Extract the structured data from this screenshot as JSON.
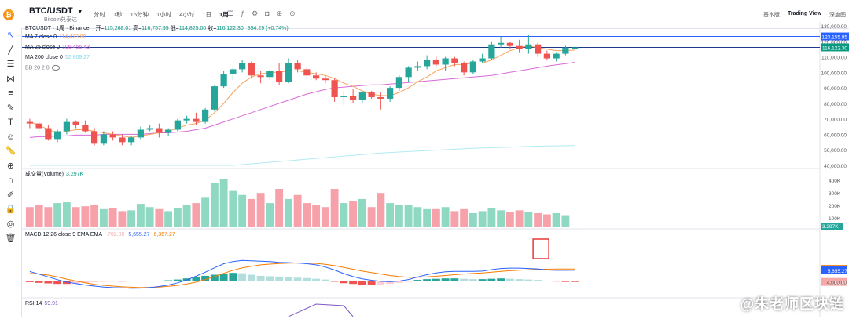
{
  "header": {
    "star_icon": "star-icon",
    "symbol": "BTC/USDT",
    "symbol_sub": "Bitcoin兑泰达",
    "intervals": [
      "分时",
      "1秒",
      "15分钟",
      "1小时",
      "4小时",
      "1日",
      "1周"
    ],
    "active_interval": "1周",
    "view_modes": [
      "基本版",
      "Trading View",
      "深度图"
    ],
    "active_view": "Trading View"
  },
  "ohlc": {
    "title": "BTCUSDT · 1周 · Binance",
    "open_label": "开=",
    "open": "115,268.01",
    "high_label": "高=",
    "high": "116,757.99",
    "low_label": "低=",
    "low": "114,825.00",
    "close_label": "收=",
    "close": "116,122.30",
    "change": "854.29 (+0.74%)"
  },
  "indicators": [
    {
      "label": "MA 7 close 0",
      "value": "114,423.80",
      "color": "#f7a35c"
    },
    {
      "label": "MA 25 close 0",
      "value": "106,456.43",
      "color": "#d15ad1"
    },
    {
      "label": "MA 200 close 0",
      "value": "52,809.27",
      "color": "#7fd8e8"
    },
    {
      "label": "BB 20 2 0",
      "value": "",
      "color": "#777777"
    }
  ],
  "volume": {
    "label": "成交量(Volume)",
    "value": "3.297K",
    "axis": [
      "400K",
      "300K",
      "200K",
      "100K"
    ],
    "tag": "3.297K"
  },
  "macd": {
    "label": "MACD 12 26 close 9 EMA EMA",
    "values": [
      "-702.09",
      "5,655.27",
      "6,357.27"
    ],
    "colors": [
      "#f5a8a8",
      "#2962ff",
      "#f57c00"
    ],
    "tags": [
      "6,357.27",
      "5,655.27",
      "-702.09"
    ],
    "axis_label": "4,000.00"
  },
  "rsi": {
    "label": "RSI 14",
    "value": "59.91"
  },
  "price_axis": [
    "130,000.00",
    "120,000.00",
    "110,000.00",
    "100,000.00",
    "90,000.00",
    "80,000.00",
    "70,000.00",
    "60,000.00",
    "50,000.00",
    "40,000.00"
  ],
  "price_tags": [
    {
      "value": "123,155.85",
      "color": "#2962ff"
    },
    {
      "value": "116,122.30",
      "color": "#089981"
    }
  ],
  "watermark": "@朱老师区块链",
  "chart_data": {
    "type": "candlestick",
    "ylim": [
      40000,
      130000
    ],
    "candles": [
      [
        68000,
        70000,
        64000,
        67000
      ],
      [
        67000,
        69000,
        62000,
        64000
      ],
      [
        64000,
        66000,
        56000,
        57000
      ],
      [
        57000,
        63000,
        55000,
        62000
      ],
      [
        62000,
        70000,
        60000,
        68000
      ],
      [
        68000,
        69000,
        64000,
        66000
      ],
      [
        66000,
        69000,
        61000,
        62000
      ],
      [
        62000,
        64000,
        53000,
        54000
      ],
      [
        54000,
        62000,
        53000,
        60000
      ],
      [
        60000,
        62000,
        56000,
        58000
      ],
      [
        58000,
        60000,
        53000,
        55000
      ],
      [
        55000,
        59000,
        53000,
        58000
      ],
      [
        58000,
        65000,
        57000,
        63000
      ],
      [
        63000,
        66000,
        62000,
        64000
      ],
      [
        64000,
        67000,
        58000,
        61000
      ],
      [
        61000,
        64000,
        59000,
        63000
      ],
      [
        63000,
        70000,
        62000,
        69000
      ],
      [
        69000,
        72000,
        67000,
        70000
      ],
      [
        70000,
        74000,
        66000,
        68000
      ],
      [
        68000,
        77000,
        67000,
        76000
      ],
      [
        76000,
        92000,
        75000,
        91000
      ],
      [
        91000,
        101000,
        90000,
        99000
      ],
      [
        99000,
        104000,
        95000,
        102000
      ],
      [
        102000,
        108000,
        100000,
        106000
      ],
      [
        106000,
        107000,
        96000,
        98000
      ],
      [
        98000,
        101000,
        93000,
        97000
      ],
      [
        97000,
        102000,
        95000,
        101000
      ],
      [
        101000,
        106000,
        92000,
        94000
      ],
      [
        94000,
        109000,
        93000,
        106000
      ],
      [
        106000,
        108000,
        100000,
        102000
      ],
      [
        102000,
        104000,
        96000,
        98000
      ],
      [
        98000,
        100000,
        95000,
        96000
      ],
      [
        96000,
        98000,
        93000,
        95000
      ],
      [
        95000,
        96000,
        81000,
        84000
      ],
      [
        84000,
        88000,
        79000,
        85000
      ],
      [
        85000,
        89000,
        80000,
        82000
      ],
      [
        82000,
        88000,
        80000,
        87000
      ],
      [
        87000,
        88000,
        83000,
        84000
      ],
      [
        84000,
        87000,
        76000,
        83000
      ],
      [
        83000,
        91000,
        81000,
        90000
      ],
      [
        90000,
        98000,
        88000,
        97000
      ],
      [
        97000,
        104000,
        94000,
        103000
      ],
      [
        103000,
        107000,
        101000,
        104000
      ],
      [
        104000,
        111000,
        102000,
        108000
      ],
      [
        108000,
        110000,
        104000,
        105000
      ],
      [
        105000,
        110000,
        101000,
        109000
      ],
      [
        109000,
        110000,
        104000,
        106000
      ],
      [
        106000,
        107000,
        98000,
        100000
      ],
      [
        100000,
        108000,
        99000,
        107000
      ],
      [
        107000,
        112000,
        106000,
        109000
      ],
      [
        109000,
        120000,
        108000,
        118000
      ],
      [
        118000,
        123000,
        116000,
        119000
      ],
      [
        119000,
        120000,
        115000,
        117000
      ],
      [
        117000,
        121000,
        113000,
        115000
      ],
      [
        115000,
        124000,
        112000,
        118000
      ],
      [
        118000,
        119000,
        110000,
        112000
      ],
      [
        112000,
        114000,
        108000,
        109000
      ],
      [
        109000,
        113000,
        107000,
        112000
      ],
      [
        112000,
        117000,
        111000,
        116000
      ],
      [
        115268,
        116758,
        114825,
        116122
      ]
    ],
    "ma7": [
      68000,
      66000,
      63000,
      61000,
      62000,
      63000,
      63000,
      62000,
      61000,
      60000,
      59000,
      58000,
      59000,
      60000,
      61000,
      62000,
      64000,
      66000,
      67000,
      69000,
      74000,
      80000,
      87000,
      93000,
      97000,
      99000,
      100000,
      100000,
      101000,
      101000,
      100000,
      99000,
      98000,
      96000,
      93000,
      91000,
      88000,
      86000,
      85000,
      85000,
      87000,
      90000,
      94000,
      97000,
      101000,
      103000,
      105000,
      105000,
      106000,
      106000,
      108000,
      111000,
      114000,
      116000,
      117000,
      116000,
      115000,
      114000,
      114000,
      114400
    ],
    "ma25": [
      58000,
      58500,
      58500,
      59000,
      59000,
      59500,
      59500,
      59500,
      60000,
      60000,
      60000,
      60000,
      60000,
      60500,
      61000,
      61000,
      61500,
      62000,
      63000,
      64000,
      66000,
      68000,
      70000,
      72000,
      74000,
      76000,
      78000,
      80000,
      82000,
      84000,
      86000,
      87500,
      89000,
      90000,
      90500,
      91000,
      91500,
      92000,
      92000,
      92500,
      93000,
      93500,
      94000,
      94500,
      95000,
      95500,
      96000,
      96500,
      97000,
      97500,
      98000,
      99000,
      100000,
      101000,
      102000,
      103000,
      104000,
      104800,
      105600,
      106456
    ],
    "ma200": [
      29000,
      29500,
      30000,
      30500,
      31000,
      31500,
      32000,
      32500,
      33000,
      33500,
      34000,
      34500,
      35000,
      35500,
      36000,
      36500,
      37000,
      37500,
      38000,
      38500,
      39000,
      39500,
      40000,
      40500,
      41000,
      41500,
      42000,
      42500,
      43000,
      43500,
      44000,
      44500,
      45000,
      45500,
      46000,
      46500,
      47000,
      47500,
      48000,
      48300,
      48600,
      48900,
      49200,
      49500,
      49800,
      50100,
      50400,
      50700,
      51000,
      51200,
      51400,
      51600,
      51800,
      52000,
      52200,
      52400,
      52500,
      52600,
      52700,
      52809
    ],
    "volume": [
      50,
      55,
      50,
      60,
      62,
      50,
      52,
      55,
      45,
      48,
      40,
      42,
      58,
      50,
      45,
      40,
      48,
      55,
      60,
      75,
      110,
      120,
      90,
      80,
      70,
      85,
      60,
      95,
      70,
      80,
      60,
      55,
      50,
      95,
      60,
      65,
      70,
      50,
      85,
      60,
      55,
      55,
      50,
      45,
      45,
      50,
      40,
      45,
      35,
      40,
      48,
      42,
      38,
      42,
      38,
      35,
      32,
      35,
      30,
      2
    ],
    "macd_hist": [
      -800,
      -1200,
      -1500,
      -1800,
      -1800,
      -1500,
      -1200,
      -800,
      -600,
      -500,
      -500,
      -400,
      -300,
      -200,
      0,
      200,
      600,
      1200,
      1800,
      2600,
      3200,
      3800,
      4200,
      4000,
      3200,
      2600,
      2400,
      2200,
      1800,
      1600,
      1400,
      1000,
      600,
      -600,
      -1400,
      -1800,
      -2200,
      -2400,
      -2300,
      -1800,
      -1200,
      -600,
      400,
      800,
      1000,
      1200,
      1200,
      1000,
      800,
      800,
      1000,
      1200,
      1000,
      800,
      600,
      400,
      -200,
      -500,
      -700,
      -702
    ],
    "macd_line": [
      5000,
      3500,
      2000,
      500,
      -800,
      -1600,
      -2400,
      -3000,
      -3500,
      -3800,
      -4000,
      -4200,
      -4100,
      -3800,
      -3200,
      -2400,
      -1200,
      400,
      2400,
      4600,
      7000,
      9200,
      10400,
      11000,
      10800,
      10600,
      10400,
      10000,
      9800,
      9600,
      9200,
      8600,
      7400,
      5800,
      3800,
      2200,
      1000,
      200,
      -400,
      -600,
      -200,
      600,
      2000,
      3200,
      4200,
      4800,
      5000,
      5000,
      5000,
      5200,
      6000,
      6600,
      6800,
      6800,
      6600,
      6400,
      5800,
      5600,
      5600,
      5655
    ],
    "signal_line": [
      4000,
      3600,
      3000,
      2000,
      800,
      -200,
      -1200,
      -2000,
      -2600,
      -3000,
      -3400,
      -3600,
      -3800,
      -3700,
      -3500,
      -3100,
      -2600,
      -1800,
      -800,
      600,
      2200,
      4000,
      5600,
      7000,
      7800,
      8600,
      9000,
      9300,
      9500,
      9600,
      9600,
      9400,
      8900,
      8200,
      7200,
      6200,
      5200,
      4400,
      3600,
      2800,
      2200,
      1800,
      1800,
      2000,
      2400,
      2800,
      3200,
      3600,
      3900,
      4200,
      4600,
      5000,
      5400,
      5700,
      5900,
      6100,
      6200,
      6300,
      6350,
      6357
    ]
  }
}
